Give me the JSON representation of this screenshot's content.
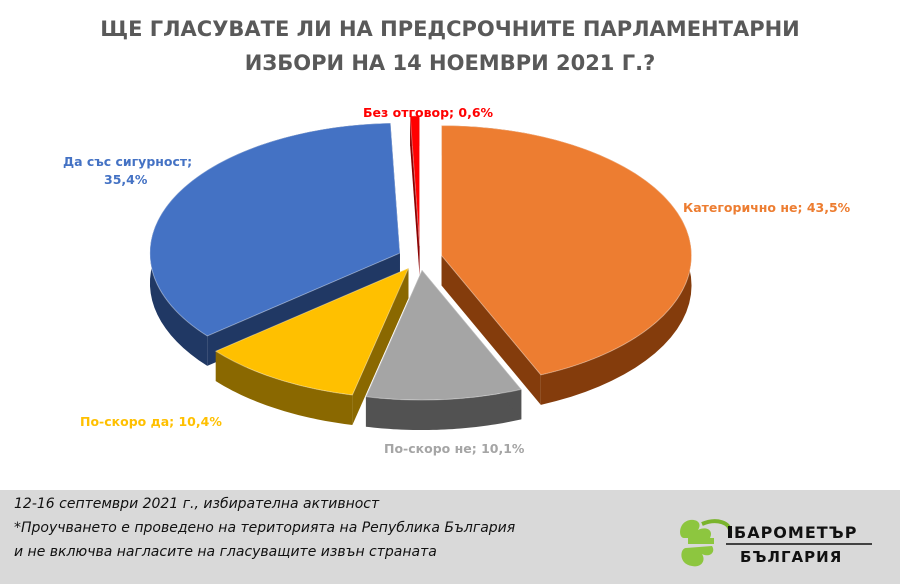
{
  "chart_data": {
    "type": "pie",
    "title_line1": "ЩЕ ГЛАСУВАТЕ ЛИ НА ПРЕДСРОЧНИТЕ ПАРЛАМЕНТАРНИ",
    "title_line2": "ИЗБОРИ НА 14 НОЕМВРИ 2021 Г.?",
    "slices": [
      {
        "label": "Категорично  не; 43,5%",
        "value": 43.5,
        "color": "#ed7d31",
        "side": "#843c0c"
      },
      {
        "label": "По-скоро  не; 10,1%",
        "value": 10.1,
        "color": "#a5a5a5",
        "side": "#525252"
      },
      {
        "label": "По-скоро  да; 10,4%",
        "value": 10.4,
        "color": "#ffc000",
        "side": "#8a6800"
      },
      {
        "label_line1": "Да със сигурност;",
        "label_line2": "35,4%",
        "value": 35.4,
        "color": "#4472c4",
        "side": "#203864"
      },
      {
        "label": "Без отговор; 0,6%",
        "value": 0.6,
        "color": "#ff0000",
        "side": "#8b0000"
      }
    ],
    "label_colors": {
      "no": "#ed7d31",
      "rather_no": "#a5a5a5",
      "rather_yes": "#ffc000",
      "yes": "#4472c4",
      "none": "#ff0000"
    }
  },
  "footer": {
    "line1": "12-16 септември 2021 г., избирателна активност",
    "line2": "*Проучването е проведено на територията на Република България",
    "line3": " и не включва нагласите на гласуващите извън страната"
  },
  "logo": {
    "word1": "БАРОМЕТЪР",
    "word2": "БЪЛГАРИЯ",
    "accent": "#8dc63f"
  }
}
